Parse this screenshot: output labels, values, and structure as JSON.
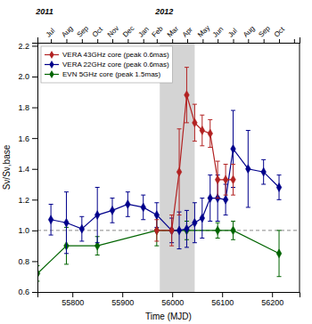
{
  "chart_data": {
    "type": "line",
    "xlabel": "Time (MJD)",
    "ylabel": "Sν/Sν,base",
    "xlim": [
      55730,
      56255
    ],
    "ylim": [
      0.6,
      2.22
    ],
    "xticks": [
      55800,
      55900,
      56000,
      56100,
      56200
    ],
    "yticks": [
      0.6,
      0.8,
      {
        "value": 1.0,
        "label": "1.0"
      },
      1.2,
      1.4,
      1.6,
      1.8,
      {
        "value": 2.0,
        "label": "2.0"
      },
      2.2
    ],
    "x2ticks": [
      {
        "value": 55757,
        "label": "Jul"
      },
      {
        "value": 55788,
        "label": "Aug"
      },
      {
        "value": 55819,
        "label": "Sep"
      },
      {
        "value": 55850,
        "label": "Oct"
      },
      {
        "value": 55880,
        "label": "Nov"
      },
      {
        "value": 55911,
        "label": "Dec"
      },
      {
        "value": 55942,
        "label": "Jan"
      },
      {
        "value": 55969,
        "label": "Feb"
      },
      {
        "value": 56000,
        "label": "Mar"
      },
      {
        "value": 56030,
        "label": "Apr"
      },
      {
        "value": 56061,
        "label": "May"
      },
      {
        "value": 56091,
        "label": "Jun"
      },
      {
        "value": 56122,
        "label": "Jul"
      },
      {
        "value": 56152,
        "label": "Aug"
      },
      {
        "value": 56183,
        "label": "Sep"
      },
      {
        "value": 56214,
        "label": "Oct"
      },
      {
        "value": 56244,
        "label": null
      }
    ],
    "grid": false,
    "legend": "upper left",
    "shaded_regions": [
      {
        "x": [
          55975,
          56045
        ],
        "color": "#cccccc"
      }
    ],
    "reference_lines": [
      {
        "y": 1.0,
        "line_style": "dashed"
      }
    ],
    "annotations": [
      {
        "text": "2011",
        "x": 55727
      },
      {
        "text": "2012",
        "x": 55966
      }
    ],
    "series": [
      {
        "name": "EVN 5GHz core (peak 1.5mas)",
        "color": "#006400",
        "marker": "diamond",
        "x": [
          55730,
          55788,
          55850,
          55969,
          56029,
          56091,
          56122,
          56214
        ],
        "values": [
          0.72,
          0.9,
          0.9,
          1.0,
          1.0,
          1.0,
          1.0,
          0.85
        ],
        "errors": [
          0.05,
          0.12,
          0.06,
          0.1,
          0.06,
          0.05,
          0.06,
          0.15
        ]
      },
      {
        "name": "VERA 22GHz core (peak 0.6mas)",
        "color": "#00008b",
        "marker": "diamond",
        "x": [
          55757,
          55788,
          55819,
          55850,
          55880,
          55911,
          55942,
          55969,
          55999,
          56014,
          56029,
          56045,
          56060,
          56076,
          56091,
          56107,
          56122,
          56152,
          56183,
          56214
        ],
        "values": [
          1.07,
          1.05,
          1.01,
          1.1,
          1.13,
          1.17,
          1.15,
          1.1,
          1.0,
          1.0,
          1.01,
          1.05,
          1.08,
          1.21,
          1.21,
          1.2,
          1.53,
          1.4,
          1.38,
          1.28
        ],
        "errors": [
          0.1,
          0.2,
          0.08,
          0.18,
          0.08,
          0.08,
          0.08,
          0.08,
          0.08,
          0.12,
          0.12,
          0.13,
          0.13,
          0.15,
          0.15,
          0.1,
          0.25,
          0.25,
          0.08,
          0.08
        ]
      },
      {
        "name": "VERA 43GHz core (peak 0.6mas)",
        "color": "#b22222",
        "marker": "diamond",
        "x": [
          55969,
          55999,
          56014,
          56029,
          56045,
          56060,
          56076,
          56091,
          56107,
          56122
        ],
        "values": [
          1.0,
          1.0,
          1.38,
          1.88,
          1.7,
          1.65,
          1.63,
          1.33,
          1.33,
          1.33
        ],
        "errors": [
          0.07,
          0.1,
          0.28,
          0.18,
          0.12,
          0.1,
          0.09,
          0.12,
          0.1,
          0.1
        ]
      }
    ]
  }
}
